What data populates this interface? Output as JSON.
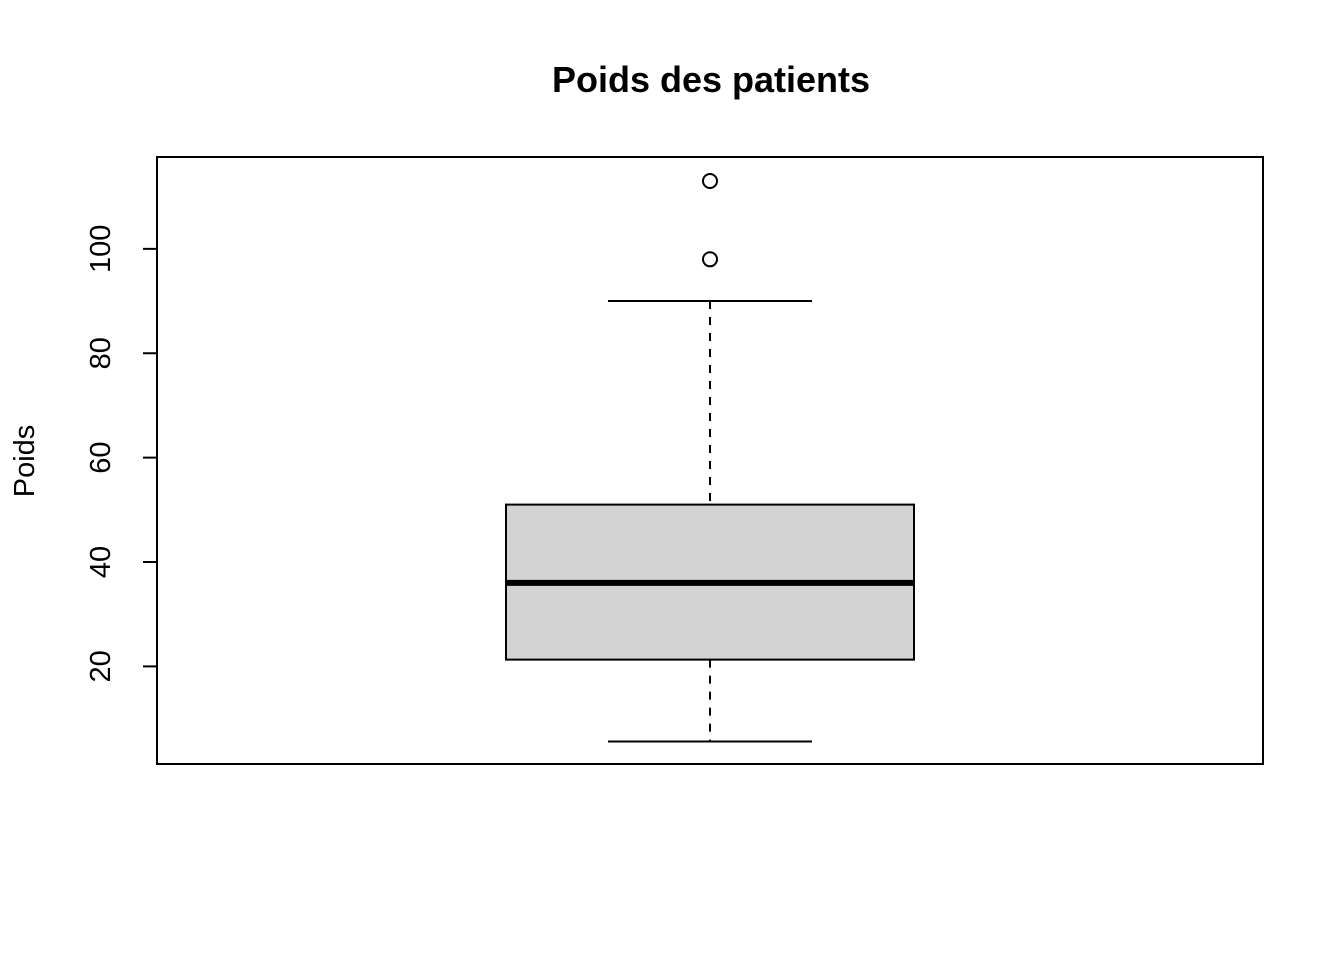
{
  "chart_data": {
    "type": "boxplot",
    "title": "Poids des patients",
    "xlabel": "",
    "ylabel": "Poids",
    "ylim": [
      1.3,
      117.6
    ],
    "yticks": [
      20,
      40,
      60,
      80,
      100
    ],
    "grid": false,
    "box": {
      "lower_whisker": 5.6,
      "q1": 21.3,
      "median": 36.0,
      "q3": 51.0,
      "upper_whisker": 90.0
    },
    "outliers": [
      98.0,
      113.0
    ],
    "colors": {
      "box_fill": "#d3d3d3",
      "stroke": "#000000"
    }
  }
}
